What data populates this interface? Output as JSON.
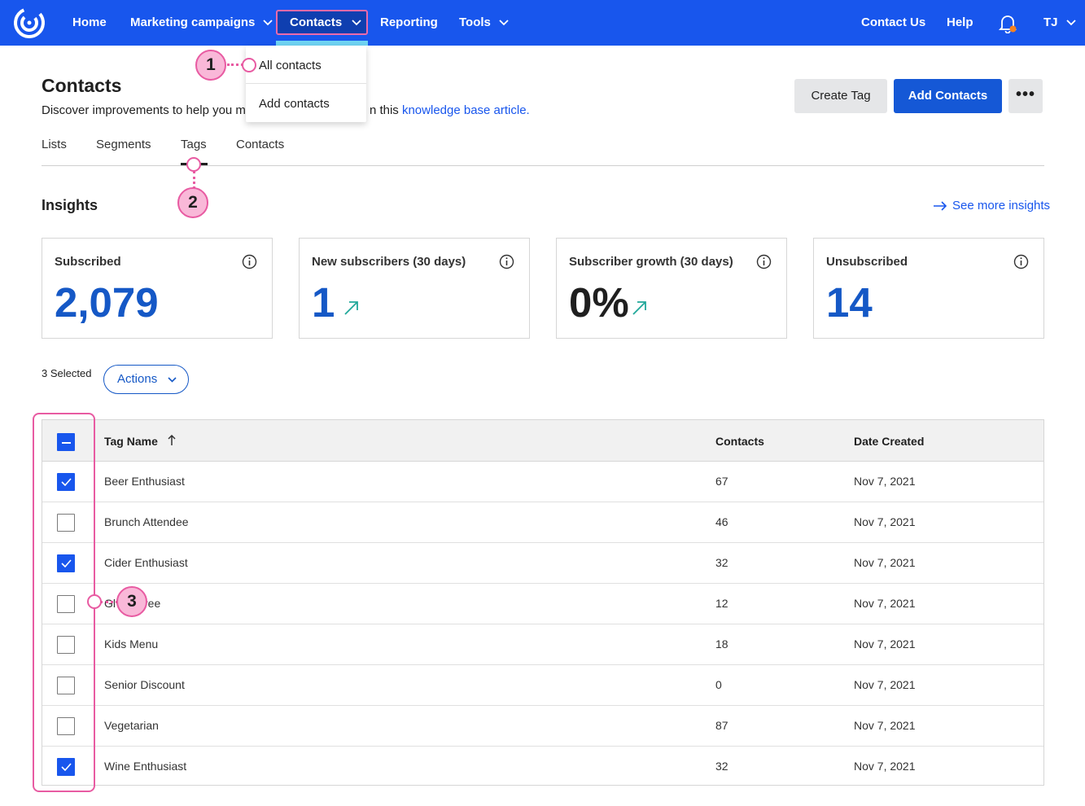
{
  "nav": {
    "home": "Home",
    "marketing": "Marketing campaigns",
    "contacts": "Contacts",
    "reporting": "Reporting",
    "tools": "Tools",
    "contact_us": "Contact Us",
    "help": "Help",
    "user": "TJ",
    "brand_color": "#1856ED"
  },
  "dropdown": {
    "items": [
      "All contacts",
      "Add contacts"
    ]
  },
  "callouts": [
    "1",
    "2",
    "3"
  ],
  "page": {
    "title": "Contacts",
    "subtitle_before": "Discover improvements to help you m",
    "subtitle_after": "n this ",
    "subtitle_link": "knowledge base article.",
    "create_tag": "Create Tag",
    "add_contacts": "Add Contacts",
    "more": "•••"
  },
  "tabs": [
    "Lists",
    "Segments",
    "Tags",
    "Contacts"
  ],
  "insights": {
    "title": "Insights",
    "see_more": "See more insights",
    "cards": [
      {
        "label": "Subscribed",
        "value": "2,079"
      },
      {
        "label": "New subscribers (30 days)",
        "value": "1"
      },
      {
        "label": "Subscriber growth (30 days)",
        "value": "0%"
      },
      {
        "label": "Unsubscribed",
        "value": "14"
      }
    ]
  },
  "selection": {
    "text": "3 Selected",
    "actions": "Actions"
  },
  "table": {
    "headers": {
      "name": "Tag Name",
      "contacts": "Contacts",
      "date": "Date Created"
    },
    "rows": [
      {
        "name": "Beer Enthusiast",
        "contacts": "67",
        "date": "Nov 7, 2021",
        "checked": true
      },
      {
        "name": "Brunch Attendee",
        "contacts": "46",
        "date": "Nov 7, 2021",
        "checked": false
      },
      {
        "name": "Cider Enthusiast",
        "contacts": "32",
        "date": "Nov 7, 2021",
        "checked": true
      },
      {
        "name": "Gl",
        "name_tail": "ree",
        "contacts": "12",
        "date": "Nov 7, 2021",
        "checked": false
      },
      {
        "name": "Kids Menu",
        "contacts": "18",
        "date": "Nov 7, 2021",
        "checked": false
      },
      {
        "name": "Senior Discount",
        "contacts": "0",
        "date": "Nov 7, 2021",
        "checked": false
      },
      {
        "name": "Vegetarian",
        "contacts": "87",
        "date": "Nov 7, 2021",
        "checked": false
      },
      {
        "name": "Wine Enthusiast",
        "contacts": "32",
        "date": "Nov 7, 2021",
        "checked": true
      }
    ]
  }
}
